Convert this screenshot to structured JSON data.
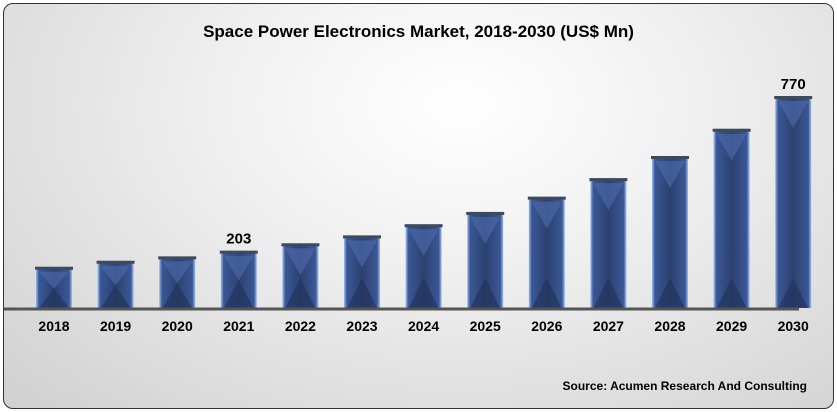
{
  "chart_data": {
    "type": "bar",
    "title": "Space Power Electronics Market, 2018-2030 (US$ Mn)",
    "categories": [
      "2018",
      "2019",
      "2020",
      "2021",
      "2022",
      "2023",
      "2024",
      "2025",
      "2026",
      "2027",
      "2028",
      "2029",
      "2030"
    ],
    "values": [
      144,
      166,
      182,
      203,
      230,
      259,
      300,
      345,
      401,
      469,
      550,
      650,
      770
    ],
    "data_labels": {
      "2021": "203",
      "2030": "770"
    },
    "xlabel": "",
    "ylabel": "",
    "ylim": [
      0,
      800
    ],
    "grid": false,
    "bar_color": "#2f4a82",
    "source": "Source: Acumen Research And Consulting"
  }
}
